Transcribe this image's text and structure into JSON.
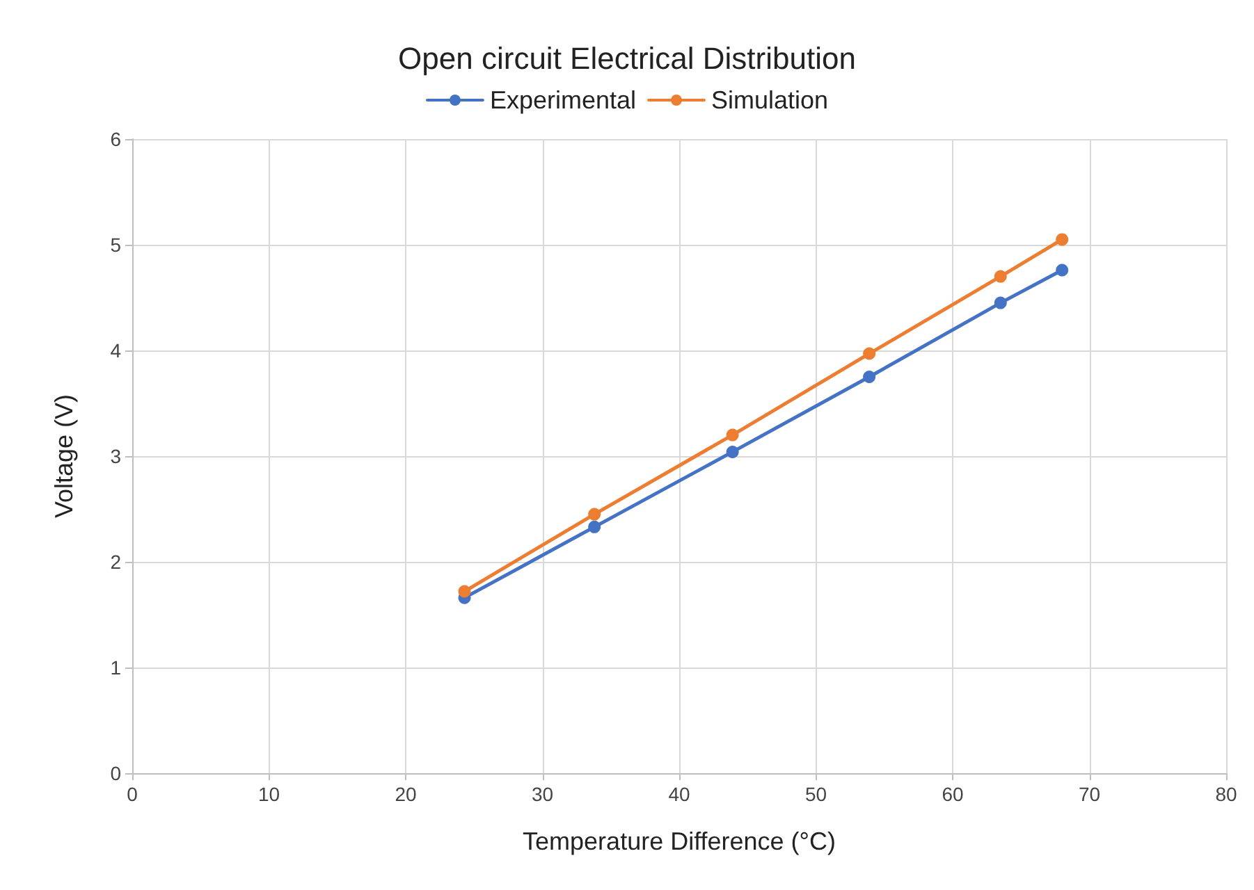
{
  "chart_data": {
    "type": "line",
    "title": "Open circuit Electrical Distribution",
    "xlabel": "Temperature Difference (°C)",
    "ylabel": "Voltage (V)",
    "x": [
      24.3,
      33.8,
      43.9,
      53.9,
      63.5,
      68.0
    ],
    "series": [
      {
        "name": "Experimental",
        "color": "#4472c4",
        "values": [
          1.66,
          2.33,
          3.04,
          3.75,
          4.45,
          4.76
        ]
      },
      {
        "name": "Simulation",
        "color": "#ed7d31",
        "values": [
          1.72,
          2.45,
          3.2,
          3.97,
          4.7,
          5.05
        ]
      }
    ],
    "xlim": [
      0,
      80
    ],
    "xticks": [
      0,
      10,
      20,
      30,
      40,
      50,
      60,
      70,
      80
    ],
    "ylim": [
      0,
      6
    ],
    "yticks": [
      0,
      1,
      2,
      3,
      4,
      5,
      6
    ],
    "grid": true,
    "legend": "top",
    "marker": "circle",
    "line_style": "solid"
  }
}
